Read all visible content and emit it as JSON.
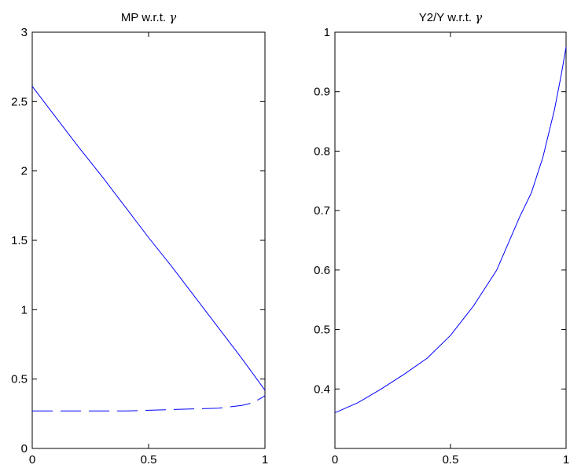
{
  "chart_data": [
    {
      "type": "line",
      "title": "MP w.r.t. ",
      "title_symbol": "γ",
      "xlabel": "",
      "ylabel": "",
      "xlim": [
        0,
        1
      ],
      "ylim": [
        0,
        3
      ],
      "xticks": [
        "0",
        "0.5",
        "1"
      ],
      "yticks": [
        "0",
        "0.5",
        "1",
        "1.5",
        "2",
        "2.5",
        "3"
      ],
      "grid": false,
      "series": [
        {
          "style": "solid",
          "x": [
            0,
            0.1,
            0.2,
            0.3,
            0.4,
            0.5,
            0.6,
            0.7,
            0.8,
            0.9,
            1.0
          ],
          "y": [
            2.61,
            2.39,
            2.17,
            1.96,
            1.74,
            1.52,
            1.31,
            1.09,
            0.87,
            0.65,
            0.42
          ]
        },
        {
          "style": "dashed",
          "x": [
            0,
            0.1,
            0.2,
            0.3,
            0.4,
            0.5,
            0.6,
            0.7,
            0.8,
            0.85,
            0.9,
            0.95,
            1.0
          ],
          "y": [
            0.27,
            0.27,
            0.27,
            0.27,
            0.27,
            0.275,
            0.28,
            0.285,
            0.29,
            0.3,
            0.31,
            0.33,
            0.38
          ]
        }
      ],
      "color": "#0000ff"
    },
    {
      "type": "line",
      "title": "Y2/Y  w.r.t. ",
      "title_symbol": "γ",
      "xlabel": "",
      "ylabel": "",
      "xlim": [
        0,
        1
      ],
      "ylim": [
        0.3,
        1
      ],
      "xticks": [
        "0",
        "0.5",
        "1"
      ],
      "yticks": [
        "0.4",
        "0.5",
        "0.6",
        "0.7",
        "0.8",
        "0.9",
        "1"
      ],
      "grid": false,
      "series": [
        {
          "style": "solid",
          "x": [
            0,
            0.1,
            0.2,
            0.3,
            0.4,
            0.5,
            0.6,
            0.7,
            0.8,
            0.85,
            0.9,
            0.95,
            0.98,
            1.0
          ],
          "y": [
            0.36,
            0.377,
            0.4,
            0.425,
            0.452,
            0.49,
            0.54,
            0.6,
            0.69,
            0.73,
            0.79,
            0.87,
            0.93,
            0.975
          ]
        }
      ],
      "color": "#0000ff"
    }
  ]
}
